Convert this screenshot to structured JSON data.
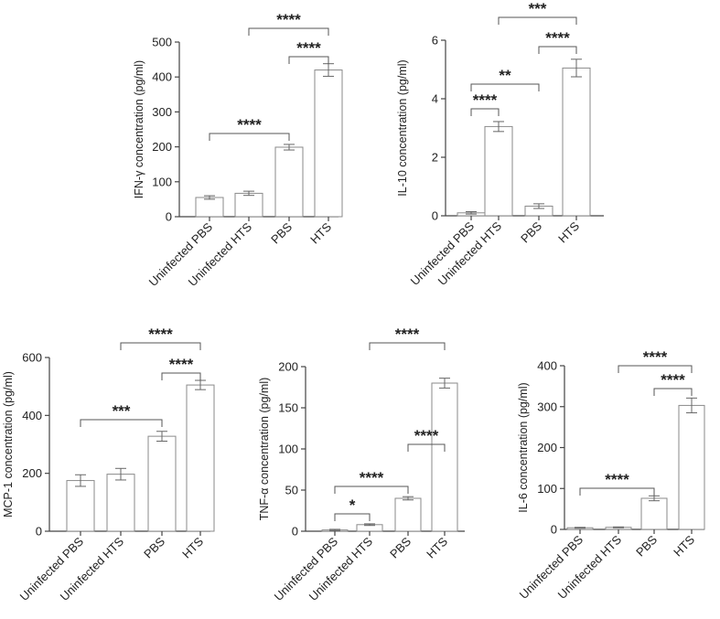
{
  "chart_data": [
    {
      "type": "bar",
      "ylabel": "IFN-γ concentration (pg/ml)",
      "categories": [
        "Uninfected PBS",
        "Uninfected HTS",
        "PBS",
        "HTS"
      ],
      "values": [
        55,
        67,
        199,
        420
      ],
      "errors": [
        5,
        6,
        8,
        18
      ],
      "ylim": [
        0,
        500
      ],
      "yticks": [
        "0",
        "100",
        "200",
        "300",
        "400",
        "500"
      ],
      "brackets": [
        {
          "from": 0,
          "to": 2,
          "label": "****"
        },
        {
          "from": 2,
          "to": 3,
          "label": "****"
        },
        {
          "from": 1,
          "to": 3,
          "label": "****"
        }
      ]
    },
    {
      "type": "bar",
      "ylabel": "IL-10 concentration (pg/ml)",
      "categories": [
        "Uninfected PBS",
        "Uninfected HTS",
        "PBS",
        "HTS"
      ],
      "values": [
        0.1,
        3.05,
        0.33,
        5.05
      ],
      "errors": [
        0.04,
        0.17,
        0.08,
        0.3
      ],
      "ylim": [
        0,
        6
      ],
      "yticks": [
        "0",
        "2",
        "4",
        "6"
      ],
      "brackets": [
        {
          "from": 0,
          "to": 1,
          "label": "****"
        },
        {
          "from": 0,
          "to": 2,
          "label": "**"
        },
        {
          "from": 2,
          "to": 3,
          "label": "****"
        },
        {
          "from": 1,
          "to": 3,
          "label": "***"
        }
      ]
    },
    {
      "type": "bar",
      "ylabel": "MCP-1 concentration (pg/ml)",
      "categories": [
        "Uninfected PBS",
        "Uninfected HTS",
        "PBS",
        "HTS"
      ],
      "values": [
        175,
        197,
        328,
        505
      ],
      "errors": [
        20,
        20,
        17,
        16
      ],
      "ylim": [
        0,
        600
      ],
      "yticks": [
        "0",
        "200",
        "400",
        "600"
      ],
      "brackets": [
        {
          "from": 0,
          "to": 2,
          "label": "***"
        },
        {
          "from": 2,
          "to": 3,
          "label": "****"
        },
        {
          "from": 1,
          "to": 3,
          "label": "****"
        }
      ]
    },
    {
      "type": "bar",
      "ylabel": "TNF-α concentration (pg/ml)",
      "categories": [
        "Uninfected PBS",
        "Uninfected HTS",
        "PBS",
        "HTS"
      ],
      "values": [
        1.5,
        8,
        40,
        180
      ],
      "errors": [
        0.8,
        1,
        2,
        6
      ],
      "ylim": [
        0,
        200
      ],
      "yticks": [
        "0",
        "50",
        "100",
        "150",
        "200"
      ],
      "brackets": [
        {
          "from": 0,
          "to": 1,
          "label": "*"
        },
        {
          "from": 0,
          "to": 2,
          "label": "****"
        },
        {
          "from": 2,
          "to": 3,
          "label": "****"
        },
        {
          "from": 1,
          "to": 3,
          "label": "****"
        }
      ]
    },
    {
      "type": "bar",
      "ylabel": "IL-6 concentration (pg/ml)",
      "categories": [
        "Uninfected PBS",
        "Uninfected HTS",
        "PBS",
        "HTS"
      ],
      "values": [
        4,
        5,
        76,
        303
      ],
      "errors": [
        1,
        1,
        6,
        18
      ],
      "ylim": [
        0,
        400
      ],
      "yticks": [
        "0",
        "100",
        "200",
        "300",
        "400"
      ],
      "brackets": [
        {
          "from": 0,
          "to": 2,
          "label": "****"
        },
        {
          "from": 2,
          "to": 3,
          "label": "****"
        },
        {
          "from": 1,
          "to": 3,
          "label": "****"
        }
      ]
    }
  ]
}
